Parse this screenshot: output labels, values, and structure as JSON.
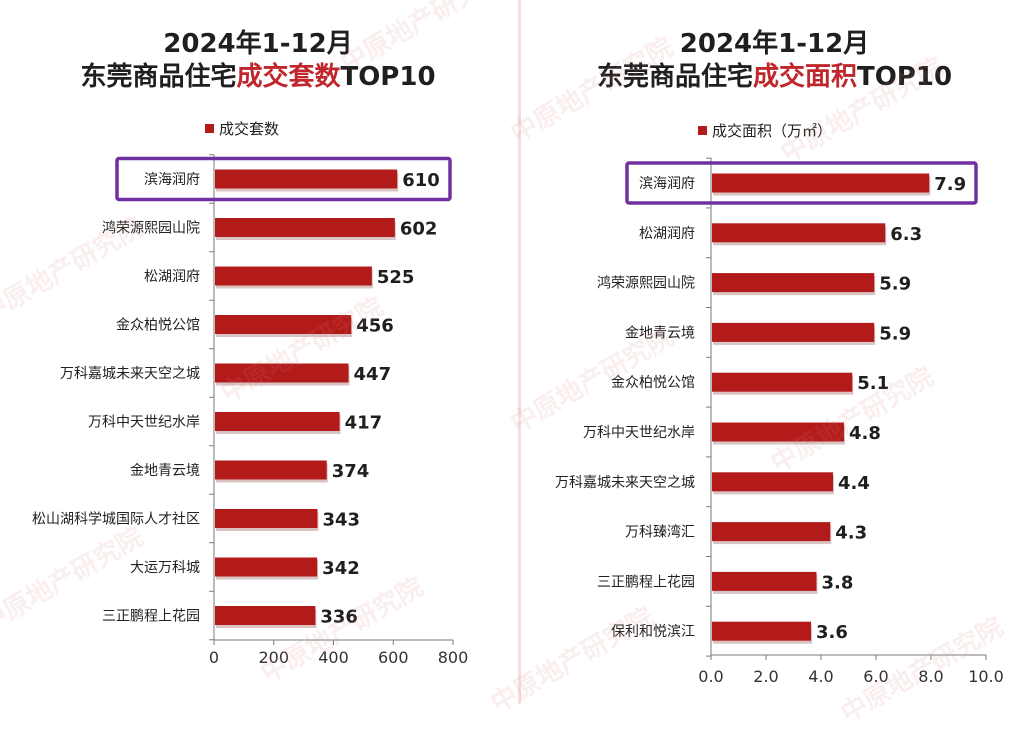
{
  "watermark": "中原地产研究院",
  "chart_data": [
    {
      "type": "bar",
      "orientation": "horizontal",
      "title_line1": "2024年1-12月",
      "title_line2_prefix": "东莞商品住宅",
      "title_line2_highlight": "成交套数",
      "title_line2_suffix": "TOP10",
      "legend": "成交套数",
      "legend_position": "top",
      "categories": [
        "滨海润府",
        "鸿荣源熙园山院",
        "松湖润府",
        "金众柏悦公馆",
        "万科嘉城未来天空之城",
        "万科中天世纪水岸",
        "金地青云境",
        "松山湖科学城国际人才社区",
        "大运万科城",
        "三正鹏程上花园"
      ],
      "series": [
        {
          "name": "成交套数",
          "values": [
            610,
            602,
            525,
            456,
            447,
            417,
            374,
            343,
            342,
            336
          ]
        }
      ],
      "xlim": [
        0,
        800
      ],
      "ticks": [
        0,
        200,
        400,
        600,
        800
      ],
      "tick_labels": [
        "0",
        "200",
        "400",
        "600",
        "800"
      ],
      "value_labels": [
        "610",
        "602",
        "525",
        "456",
        "447",
        "417",
        "374",
        "343",
        "342",
        "336"
      ],
      "highlighted_category": "滨海润府",
      "grid": false,
      "colors": {
        "bar": "#b31b1b",
        "highlight_box": "#7030a0"
      }
    },
    {
      "type": "bar",
      "orientation": "horizontal",
      "title_line1": "2024年1-12月",
      "title_line2_prefix": "东莞商品住宅",
      "title_line2_highlight": "成交面积",
      "title_line2_suffix": "TOP10",
      "legend": "成交面积（万㎡）",
      "legend_position": "top",
      "categories": [
        "滨海润府",
        "松湖润府",
        "鸿荣源熙园山院",
        "金地青云境",
        "金众柏悦公馆",
        "万科中天世纪水岸",
        "万科嘉城未来天空之城",
        "万科臻湾汇",
        "三正鹏程上花园",
        "保利和悦滨江"
      ],
      "series": [
        {
          "name": "成交面积（万㎡）",
          "values": [
            7.9,
            6.3,
            5.9,
            5.9,
            5.1,
            4.8,
            4.4,
            4.3,
            3.8,
            3.6
          ]
        }
      ],
      "xlim": [
        0,
        10
      ],
      "ticks": [
        0,
        2,
        4,
        6,
        8,
        10
      ],
      "tick_labels": [
        "0.0",
        "2.0",
        "4.0",
        "6.0",
        "8.0",
        "10.0"
      ],
      "value_labels": [
        "7.9",
        "6.3",
        "5.9",
        "5.9",
        "5.1",
        "4.8",
        "4.4",
        "4.3",
        "3.8",
        "3.6"
      ],
      "highlighted_category": "滨海润府",
      "grid": false,
      "colors": {
        "bar": "#b31b1b",
        "highlight_box": "#7030a0"
      }
    }
  ]
}
